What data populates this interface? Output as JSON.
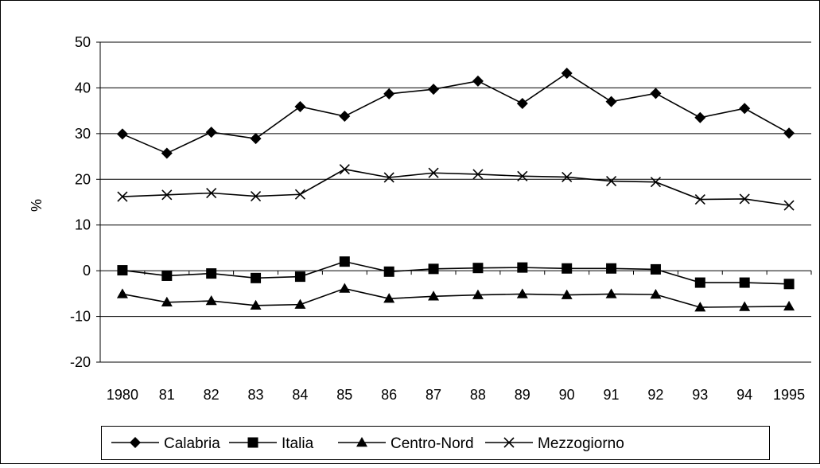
{
  "chart_data": {
    "type": "line",
    "title": "",
    "xlabel": "",
    "ylabel": "%",
    "ylim": [
      -20,
      50
    ],
    "yticks": [
      -20,
      -10,
      0,
      10,
      20,
      30,
      40,
      50
    ],
    "y_tick_labels": [
      "-20",
      "-10",
      "0",
      "10",
      "20",
      "30",
      "40",
      "50"
    ],
    "categories": [
      "1980",
      "81",
      "82",
      "83",
      "84",
      "85",
      "86",
      "87",
      "88",
      "89",
      "90",
      "91",
      "92",
      "93",
      "94",
      "1995"
    ],
    "grid": "horizontal",
    "legend_position": "bottom",
    "series": [
      {
        "name": "Calabria",
        "marker": "diamond",
        "values": [
          29.9,
          25.7,
          30.3,
          28.9,
          35.9,
          33.8,
          38.7,
          39.7,
          41.5,
          36.6,
          43.2,
          37.0,
          38.8,
          33.5,
          35.5,
          30.1
        ]
      },
      {
        "name": "Italia",
        "marker": "square",
        "values": [
          0.1,
          -1.1,
          -0.6,
          -1.6,
          -1.3,
          2.0,
          -0.2,
          0.4,
          0.6,
          0.7,
          0.5,
          0.5,
          0.3,
          -2.6,
          -2.6,
          -2.9
        ]
      },
      {
        "name": "Centro-Nord",
        "marker": "triangle",
        "values": [
          -5.1,
          -6.9,
          -6.6,
          -7.6,
          -7.4,
          -3.9,
          -6.1,
          -5.6,
          -5.3,
          -5.1,
          -5.3,
          -5.1,
          -5.2,
          -8.0,
          -7.9,
          -7.8
        ]
      },
      {
        "name": "Mezzogiorno",
        "marker": "x",
        "values": [
          16.2,
          16.6,
          17.0,
          16.3,
          16.7,
          22.2,
          20.4,
          21.4,
          21.1,
          20.7,
          20.5,
          19.6,
          19.4,
          15.6,
          15.7,
          14.3
        ]
      }
    ],
    "colors": {
      "line": "#000000",
      "grid": "#000000",
      "background": "#ffffff",
      "frame": "#000000"
    }
  }
}
